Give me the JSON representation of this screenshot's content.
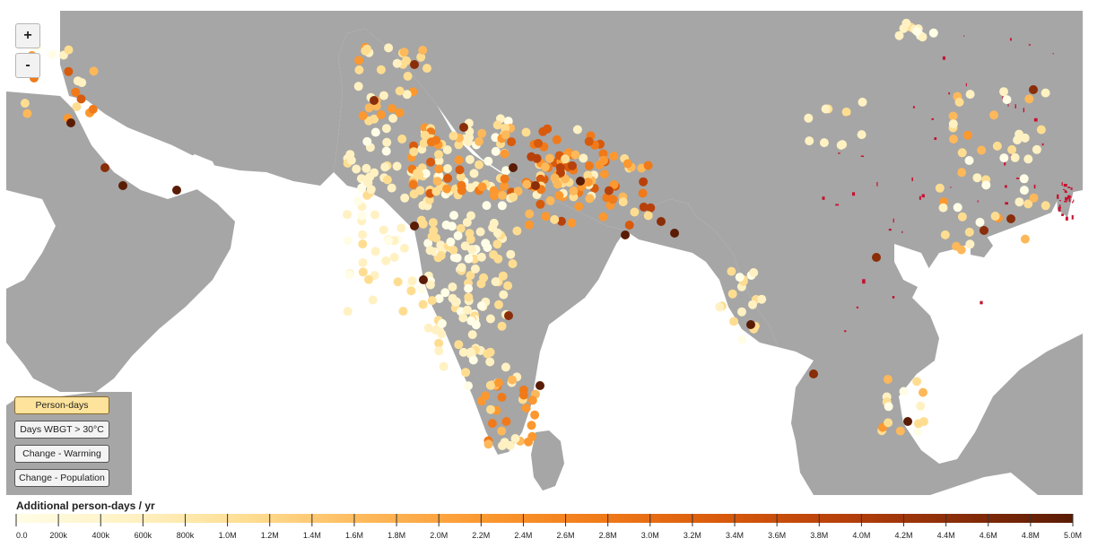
{
  "map": {
    "zoom_in_label": "+",
    "zoom_out_label": "-",
    "land_color": "#a6a6a6",
    "water_color": "#ffffff",
    "hotspot_color": "#c8102e"
  },
  "mode_buttons": [
    {
      "label": "Person-days",
      "active": true
    },
    {
      "label": "Days WBGT > 30°C",
      "active": false
    },
    {
      "label": "Change - Warming",
      "active": false
    },
    {
      "label": "Change - Population",
      "active": false
    }
  ],
  "legend": {
    "title": "Additional person-days / yr",
    "min": 0,
    "max": 5000000,
    "ticks": [
      "0.0",
      "200k",
      "400k",
      "600k",
      "800k",
      "1.0M",
      "1.2M",
      "1.4M",
      "1.6M",
      "1.8M",
      "2.0M",
      "2.2M",
      "2.4M",
      "2.6M",
      "2.8M",
      "3.0M",
      "3.2M",
      "3.4M",
      "3.6M",
      "3.8M",
      "4.0M",
      "4.2M",
      "4.4M",
      "4.6M",
      "4.8M",
      "5.0M"
    ],
    "color_stops": [
      "#fffde6",
      "#fff1c2",
      "#fedd91",
      "#fdb85a",
      "#fb9830",
      "#f07a19",
      "#d85a0c",
      "#b8410b",
      "#8a2d09",
      "#5a1c05"
    ]
  }
}
